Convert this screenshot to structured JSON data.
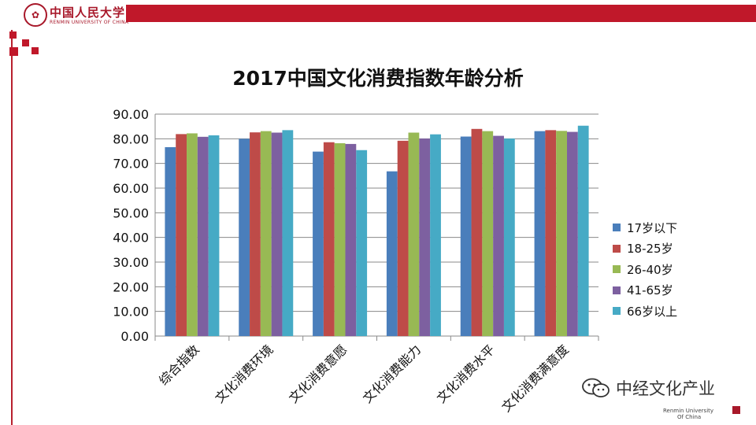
{
  "header": {
    "logo_name": "中国人民大学",
    "logo_sub": "RENMIN UNIVERSITY OF CHINA"
  },
  "watermark": {
    "text": "中经文化产业"
  },
  "footer": {
    "line1": "Renmin University",
    "line2": "Of China"
  },
  "chart_data": {
    "type": "bar",
    "title": "2017中国文化消费指数年龄分析",
    "xlabel": "",
    "ylabel": "",
    "ylim": [
      0,
      90
    ],
    "yticks": [
      "0.00",
      "10.00",
      "20.00",
      "30.00",
      "40.00",
      "50.00",
      "60.00",
      "70.00",
      "80.00",
      "90.00"
    ],
    "categories": [
      "综合指数",
      "文化消费环境",
      "文化消费意愿",
      "文化消费能力",
      "文化消费水平",
      "文化消费满意度"
    ],
    "series": [
      {
        "name": "17岁以下",
        "color": "#4a7ebb",
        "values": [
          76.6,
          80.0,
          74.8,
          66.8,
          80.9,
          83.1
        ]
      },
      {
        "name": "18-25岁",
        "color": "#be4b48",
        "values": [
          81.9,
          82.6,
          78.6,
          79.2,
          84.0,
          83.5
        ]
      },
      {
        "name": "26-40岁",
        "color": "#98b954",
        "values": [
          82.2,
          83.1,
          78.2,
          82.5,
          83.1,
          83.2
        ]
      },
      {
        "name": "41-65岁",
        "color": "#7d60a0",
        "values": [
          80.8,
          82.5,
          77.9,
          80.1,
          81.2,
          82.8
        ]
      },
      {
        "name": "66岁以上",
        "color": "#46aac5",
        "values": [
          81.4,
          83.5,
          75.4,
          81.8,
          80.1,
          85.3
        ]
      }
    ],
    "legend_position": "right",
    "grid": true
  }
}
